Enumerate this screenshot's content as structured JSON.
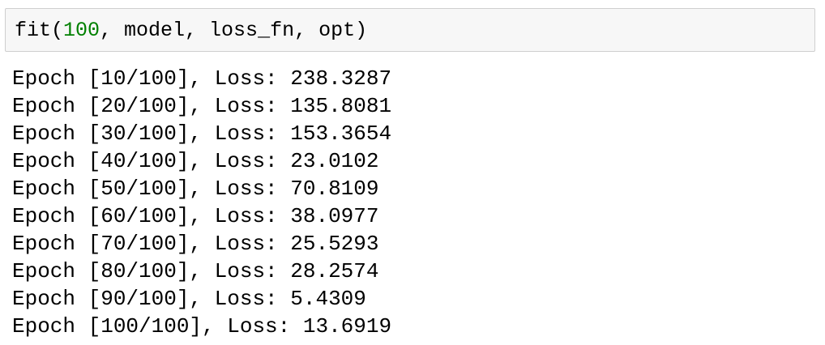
{
  "input_cell": {
    "code_parts": [
      "fit(",
      "100",
      ", model, loss_fn, opt)"
    ],
    "colors": {
      "number": "#008000",
      "background": "#f7f7f7",
      "border": "#cfcfcf"
    }
  },
  "output": {
    "lines": [
      "Epoch [10/100], Loss: 238.3287",
      "Epoch [20/100], Loss: 135.8081",
      "Epoch [30/100], Loss: 153.3654",
      "Epoch [40/100], Loss: 23.0102",
      "Epoch [50/100], Loss: 70.8109",
      "Epoch [60/100], Loss: 38.0977",
      "Epoch [70/100], Loss: 25.5293",
      "Epoch [80/100], Loss: 28.2574",
      "Epoch [90/100], Loss: 5.4309",
      "Epoch [100/100], Loss: 13.6919"
    ]
  }
}
